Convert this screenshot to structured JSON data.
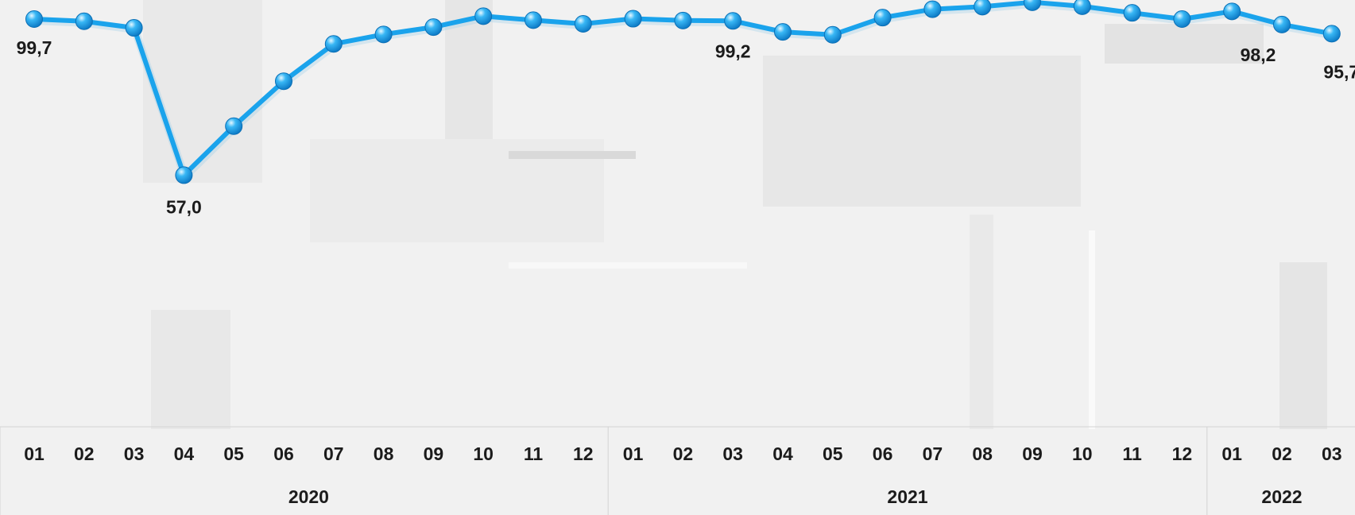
{
  "chart_data": {
    "type": "line",
    "x": [
      "01",
      "02",
      "03",
      "04",
      "05",
      "06",
      "07",
      "08",
      "09",
      "10",
      "11",
      "12",
      "01",
      "02",
      "03",
      "04",
      "05",
      "06",
      "07",
      "08",
      "09",
      "10",
      "11",
      "12",
      "01",
      "02",
      "03"
    ],
    "groups": [
      {
        "label": "2020",
        "count": 12
      },
      {
        "label": "2021",
        "count": 12
      },
      {
        "label": "2022",
        "count": 3
      }
    ],
    "series": [
      {
        "values": [
          99.7,
          99.1,
          97.3,
          57.0,
          70.4,
          82.7,
          92.9,
          95.5,
          97.5,
          100.5,
          99.4,
          98.4,
          99.8,
          99.3,
          99.2,
          96.2,
          95.4,
          100.1,
          102.4,
          103.1,
          104.3,
          103.2,
          101.4,
          99.7,
          101.8,
          98.2,
          95.7
        ]
      }
    ],
    "data_labels": [
      {
        "index": 0,
        "text": "99,7"
      },
      {
        "index": 3,
        "text": "57,0"
      },
      {
        "index": 14,
        "text": "99,2"
      },
      {
        "index": 25,
        "text": "98,2"
      },
      {
        "index": 26,
        "text": "95,7"
      }
    ],
    "line_color": "#1aa3ec",
    "grid": false,
    "legend": "none",
    "ylim": [
      0,
      105
    ]
  }
}
